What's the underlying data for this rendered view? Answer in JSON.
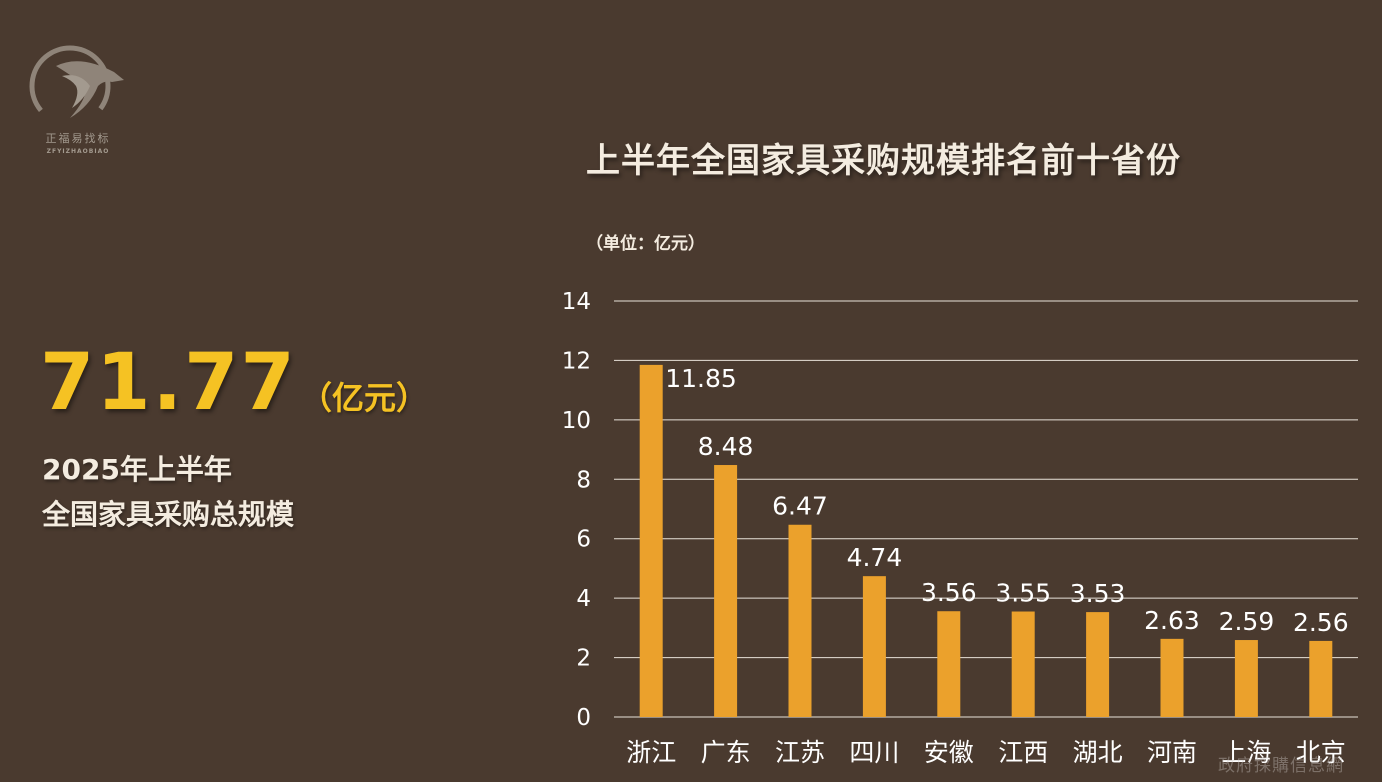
{
  "logo": {
    "name": "正福易找标",
    "sub": "ZFYIZHAOBIAO"
  },
  "summary": {
    "value": "71.77",
    "unit": "（亿元）",
    "line1": "2025年上半年",
    "line2": "全国家具采购总规模"
  },
  "watermark": "政府採購信息網",
  "colors": {
    "background": "#4a3a2f",
    "bar": "#eba12c",
    "highlight": "#f5c223",
    "text": "#f4ece0"
  },
  "chart_data": {
    "type": "bar",
    "title": "上半年全国家具采购规模排名前十省份",
    "unit_label": "（单位：亿元）",
    "categories": [
      "浙江",
      "广东",
      "江苏",
      "四川",
      "安徽",
      "江西",
      "湖北",
      "河南",
      "上海",
      "北京"
    ],
    "values": [
      11.85,
      8.48,
      6.47,
      4.74,
      3.56,
      3.55,
      3.53,
      2.63,
      2.59,
      2.56
    ],
    "value_labels": [
      "11.85",
      "8.48",
      "6.47",
      "4.74",
      "3.56",
      "3.55",
      "3.53",
      "2.63",
      "2.59",
      "2.56"
    ],
    "ylim": [
      0,
      14
    ],
    "yticks": [
      0,
      2,
      4,
      6,
      8,
      10,
      12,
      14
    ],
    "grid": true,
    "legend": false
  }
}
